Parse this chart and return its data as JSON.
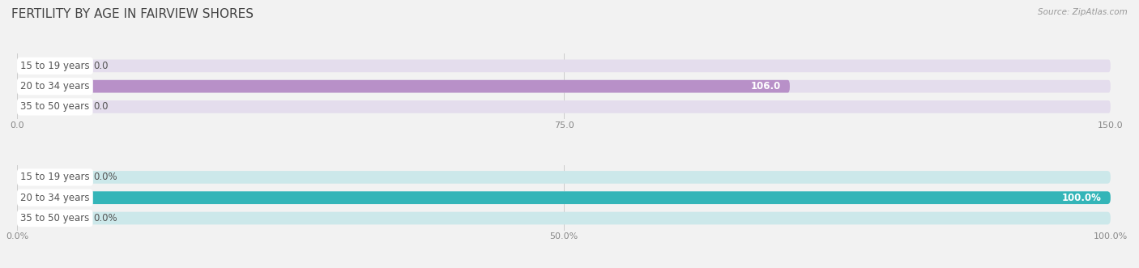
{
  "title": "FERTILITY BY AGE IN FAIRVIEW SHORES",
  "source": "Source: ZipAtlas.com",
  "top_chart": {
    "categories": [
      "15 to 19 years",
      "20 to 34 years",
      "35 to 50 years"
    ],
    "values": [
      0.0,
      106.0,
      0.0
    ],
    "xlim": [
      0,
      150
    ],
    "xticks": [
      0.0,
      75.0,
      150.0
    ],
    "xtick_labels": [
      "0.0",
      "75.0",
      "150.0"
    ],
    "bar_color": "#b890c8",
    "bar_bg_color": "#e4dded",
    "zero_cap_color": "#c8b0d8"
  },
  "bottom_chart": {
    "categories": [
      "15 to 19 years",
      "20 to 34 years",
      "35 to 50 years"
    ],
    "values": [
      0.0,
      100.0,
      0.0
    ],
    "xlim": [
      0,
      100
    ],
    "xticks": [
      0.0,
      50.0,
      100.0
    ],
    "xtick_labels": [
      "0.0%",
      "50.0%",
      "100.0%"
    ],
    "bar_color": "#34b5b8",
    "bar_bg_color": "#cce8ea",
    "zero_cap_color": "#7dd0d2"
  },
  "bg_color": "#f2f2f2",
  "bar_height": 0.62,
  "title_fontsize": 11,
  "label_fontsize": 8.5,
  "tick_fontsize": 8,
  "source_fontsize": 7.5,
  "label_text_color": "#555555",
  "tick_color": "#888888",
  "grid_color": "#cccccc",
  "value_inside_color": "#ffffff",
  "value_outside_color": "#555555"
}
